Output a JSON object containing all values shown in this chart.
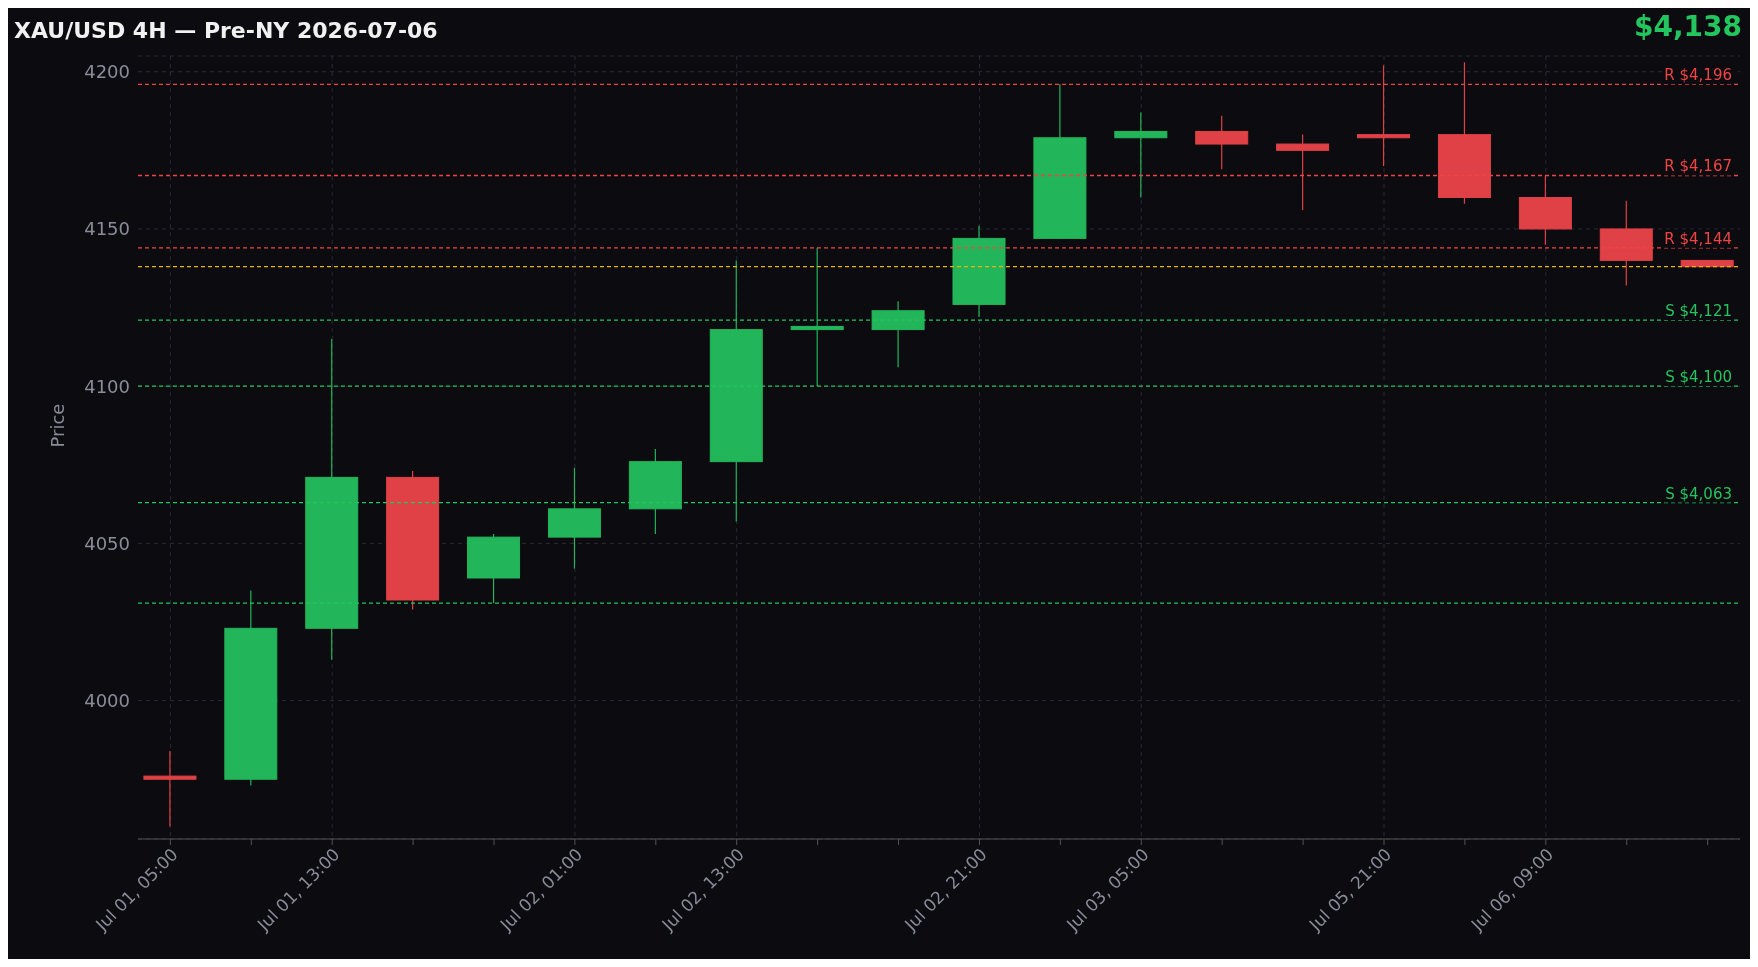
{
  "chart_data": {
    "type": "candlestick",
    "title": "XAU/USD 4H — Pre-NY 2026-07-06",
    "ylabel": "Price",
    "annotations": [
      "$4,138"
    ],
    "categories": [
      "Jul 01, 05:00",
      null,
      "Jul 01, 13:00",
      null,
      null,
      "Jul 02, 01:00",
      null,
      "Jul 02, 13:00",
      null,
      null,
      "Jul 02, 21:00",
      null,
      "Jul 03, 05:00",
      null,
      null,
      "Jul 05, 21:00",
      null,
      "Jul 06, 09:00",
      null,
      null
    ],
    "ohlc": [
      [
        3976,
        3984,
        3960,
        3975
      ],
      [
        3975,
        4035,
        3973,
        4023
      ],
      [
        4023,
        4115,
        4013,
        4071
      ],
      [
        4071,
        4073,
        4029,
        4032
      ],
      [
        4039,
        4053,
        4031,
        4052
      ],
      [
        4052,
        4074,
        4042,
        4061
      ],
      [
        4061,
        4080,
        4053,
        4076
      ],
      [
        4076,
        4140,
        4057,
        4118
      ],
      [
        4118,
        4144,
        4100,
        4119
      ],
      [
        4118,
        4127,
        4106,
        4124
      ],
      [
        4126,
        4151,
        4122,
        4147
      ],
      [
        4147,
        4196,
        4147,
        4179
      ],
      [
        4179,
        4187,
        4160,
        4181
      ],
      [
        4181,
        4186,
        4169,
        4177
      ],
      [
        4177,
        4180,
        4156,
        4175
      ],
      [
        4180,
        4202,
        4170,
        4179
      ],
      [
        4180,
        4203,
        4158,
        4160
      ],
      [
        4160,
        4167,
        4145,
        4150
      ],
      [
        4150,
        4159,
        4132,
        4140
      ],
      [
        4140,
        4140,
        4138,
        4138
      ]
    ],
    "colors": [
      "#e04146",
      "#22b55a",
      "#22b55a",
      "#e04146",
      "#22b55a",
      "#22b55a",
      "#22b55a",
      "#22b55a",
      "#22b55a",
      "#22b55a",
      "#22b55a",
      "#22b55a",
      "#22b55a",
      "#e04146",
      "#e04146",
      "#e04146",
      "#e04146",
      "#e04146",
      "#e04146",
      "#e04146"
    ],
    "ylim": [
      3956,
      4205
    ],
    "yticks": [
      4000,
      4050,
      4100,
      4150,
      4200
    ],
    "grid": true,
    "ref_lines": [
      {
        "axis": "y",
        "value": 4196,
        "label": "R $4,196",
        "color": "#ef4444",
        "line_style": "dashed"
      },
      {
        "axis": "y",
        "value": 4167,
        "label": "R $4,167",
        "color": "#ef4444",
        "line_style": "dashed"
      },
      {
        "axis": "y",
        "value": 4144,
        "label": "R $4,144",
        "color": "#ef4444",
        "line_style": "dashed"
      },
      {
        "axis": "y",
        "value": 4138,
        "color": "#eab308",
        "line_style": "dashed"
      },
      {
        "axis": "y",
        "value": 4121,
        "label": "S $4,121",
        "color": "#22c55e",
        "line_style": "dashed"
      },
      {
        "axis": "y",
        "value": 4100,
        "label": "S $4,100",
        "color": "#22c55e",
        "line_style": "dashed"
      },
      {
        "axis": "y",
        "value": 4063,
        "label": "S $4,063",
        "color": "#22c55e",
        "line_style": "dashed"
      },
      {
        "axis": "y",
        "value": 4031,
        "color": "#22c55e",
        "line_style": "dashed"
      }
    ]
  }
}
